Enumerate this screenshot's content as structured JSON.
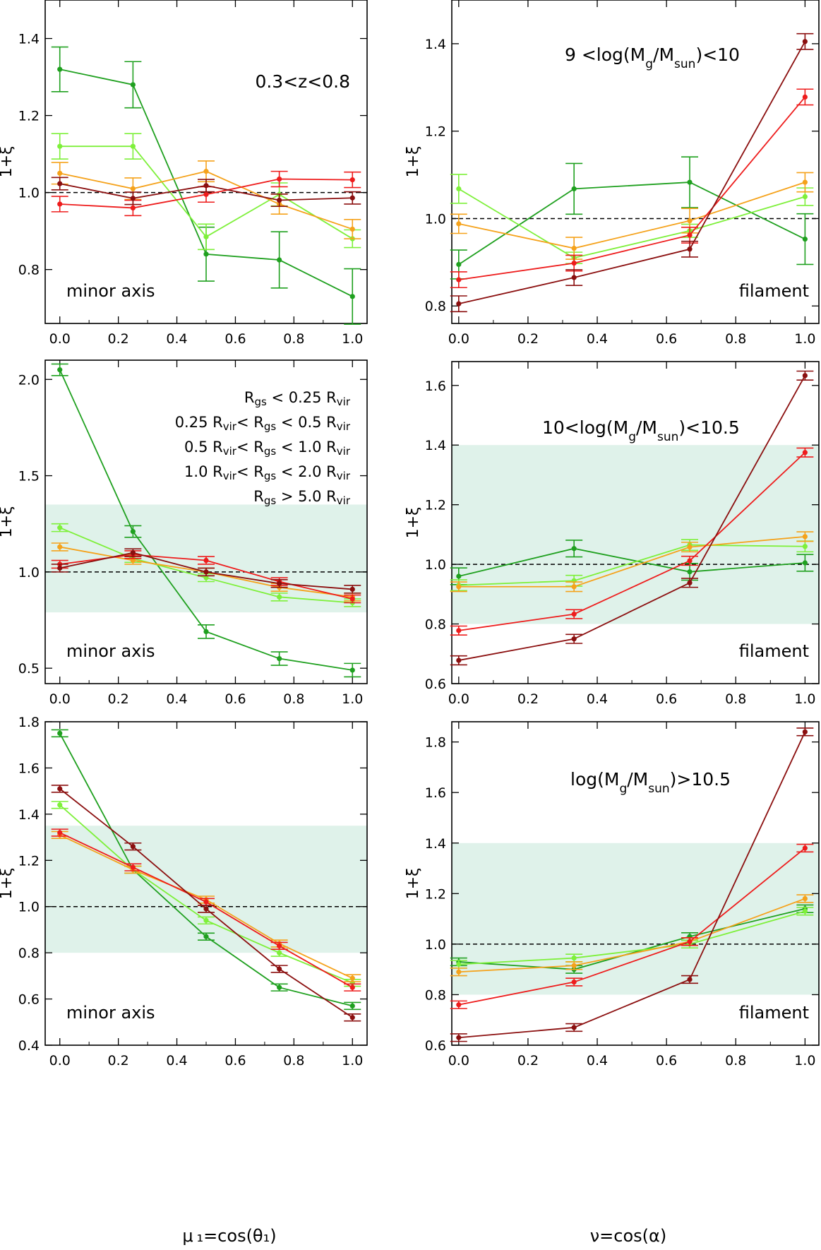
{
  "colors": {
    "s1": "#1fa01f",
    "s2": "#7ef03a",
    "s3": "#f5a21b",
    "s4": "#ee1c1c",
    "s5": "#8b0f0f",
    "band": "#dff2ea"
  },
  "legend": [
    {
      "label": "R",
      "sub": "gs",
      "rest": " < 0.25 R",
      "sub2": "vir",
      "tail": ""
    },
    {
      "label": "0.25 R",
      "sub": "vir",
      "rest": "< R",
      "sub2": "gs",
      "tail": " < 0.5 R",
      "sub3": "vir"
    },
    {
      "label": "0.5 R",
      "sub": "vir",
      "rest": "< R",
      "sub2": "gs",
      "tail": " < 1.0 R",
      "sub3": "vir"
    },
    {
      "label": "1.0 R",
      "sub": "vir",
      "rest": "< R",
      "sub2": "gs",
      "tail": " < 2.0 R",
      "sub3": "vir"
    },
    {
      "label": "R",
      "sub": "gs",
      "rest": "  > 5.0 R",
      "sub2": "vir",
      "tail": ""
    }
  ],
  "x_axis_titles": {
    "left": "μ ₁=cos(θ₁)",
    "right": "ν=cos(α)"
  },
  "chart_data": [
    {
      "type": "line",
      "panel": "top-left",
      "ylabel": "1+ξ",
      "xlim": [
        -0.05,
        1.05
      ],
      "ylim": [
        0.66,
        1.5
      ],
      "xticks": [
        "0.0",
        "0.2",
        "0.4",
        "0.6",
        "0.8",
        "1.0"
      ],
      "yticks": [
        "0.8",
        "1.0",
        "1.2",
        "1.4"
      ],
      "corner_text": "minor axis",
      "title_text": "0.3<z<0.8",
      "band": null,
      "x": [
        0,
        0.25,
        0.5,
        0.75,
        1.0
      ],
      "series": [
        {
          "name": "Rgs < 0.25 Rvir",
          "values": [
            1.32,
            1.28,
            0.84,
            0.825,
            0.73
          ],
          "err": [
            0.058,
            0.06,
            0.07,
            0.073,
            0.072
          ]
        },
        {
          "name": "0.25 Rvir < Rgs < 0.5 Rvir",
          "values": [
            1.12,
            1.12,
            0.885,
            0.995,
            0.88
          ],
          "err": [
            0.033,
            0.033,
            0.033,
            0.03,
            0.023
          ]
        },
        {
          "name": "0.5 Rvir < Rgs < 1.0 Rvir",
          "values": [
            1.05,
            1.01,
            1.055,
            0.97,
            0.905
          ],
          "err": [
            0.028,
            0.028,
            0.027,
            0.026,
            0.025
          ]
        },
        {
          "name": "1.0 Rvir < Rgs < 2.0 Rvir",
          "values": [
            0.97,
            0.96,
            0.995,
            1.035,
            1.033
          ],
          "err": [
            0.02,
            0.02,
            0.02,
            0.02,
            0.02
          ]
        },
        {
          "name": "Rgs > 5.0 Rvir",
          "values": [
            1.023,
            0.985,
            1.018,
            0.98,
            0.986
          ],
          "err": [
            0.016,
            0.016,
            0.016,
            0.016,
            0.016
          ]
        }
      ]
    },
    {
      "type": "line",
      "panel": "top-right",
      "ylabel": "1+ξ",
      "xlim": [
        -0.02,
        1.04
      ],
      "ylim": [
        0.76,
        1.5
      ],
      "xticks": [
        "0.0",
        "0.2",
        "0.4",
        "0.6",
        "0.8",
        "1.0"
      ],
      "yticks": [
        "0.8",
        "1.0",
        "1.2",
        "1.4"
      ],
      "corner_text": "filament",
      "title_text": "9 <log(M_g/M_sun)<10",
      "band": null,
      "x": [
        0,
        0.333,
        0.667,
        1.0
      ],
      "series": [
        {
          "name": "Rgs < 0.25 Rvir",
          "values": [
            0.895,
            1.068,
            1.083,
            0.953
          ],
          "err": [
            0.033,
            0.058,
            0.058,
            0.058
          ]
        },
        {
          "name": "0.25 Rvir < Rgs < 0.5 Rvir",
          "values": [
            1.068,
            0.91,
            0.972,
            1.05
          ],
          "err": [
            0.033,
            0.013,
            0.015,
            0.02
          ]
        },
        {
          "name": "0.5 Rvir < Rgs < 1.0 Rvir",
          "values": [
            0.988,
            0.932,
            0.995,
            1.083
          ],
          "err": [
            0.022,
            0.025,
            0.028,
            0.022
          ]
        },
        {
          "name": "1.0 Rvir < Rgs < 2.0 Rvir",
          "values": [
            0.86,
            0.898,
            0.962,
            1.278
          ],
          "err": [
            0.018,
            0.018,
            0.018,
            0.018
          ]
        },
        {
          "name": "Rgs > 5.0 Rvir",
          "values": [
            0.805,
            0.865,
            0.93,
            1.405
          ],
          "err": [
            0.018,
            0.018,
            0.018,
            0.018
          ]
        }
      ]
    },
    {
      "type": "line",
      "panel": "middle-left",
      "ylabel": "1+ξ",
      "xlim": [
        -0.05,
        1.05
      ],
      "ylim": [
        0.42,
        2.1
      ],
      "xticks": [
        "0.0",
        "0.2",
        "0.4",
        "0.6",
        "0.8",
        "1.0"
      ],
      "yticks": [
        "0.5",
        "1.0",
        "1.5",
        "2.0"
      ],
      "corner_text": "minor axis",
      "title_text": "",
      "band": [
        0.79,
        1.35
      ],
      "x": [
        0,
        0.25,
        0.5,
        0.75,
        1.0
      ],
      "series": [
        {
          "name": "Rgs < 0.25 Rvir",
          "values": [
            2.05,
            1.21,
            0.69,
            0.55,
            0.49
          ],
          "err": [
            0.03,
            0.03,
            0.035,
            0.035,
            0.035
          ]
        },
        {
          "name": "0.25 Rvir < Rgs < 0.5 Rvir",
          "values": [
            1.23,
            1.07,
            0.97,
            0.87,
            0.84
          ],
          "err": [
            0.02,
            0.02,
            0.02,
            0.02,
            0.02
          ]
        },
        {
          "name": "0.5 Rvir < Rgs < 1.0 Rvir",
          "values": [
            1.13,
            1.06,
            1.0,
            0.92,
            0.87
          ],
          "err": [
            0.02,
            0.02,
            0.02,
            0.02,
            0.02
          ]
        },
        {
          "name": "1.0 Rvir < Rgs < 2.0 Rvir",
          "values": [
            1.04,
            1.09,
            1.06,
            0.95,
            0.86
          ],
          "err": [
            0.02,
            0.02,
            0.02,
            0.02,
            0.02
          ]
        },
        {
          "name": "Rgs > 5.0 Rvir",
          "values": [
            1.02,
            1.1,
            1.0,
            0.94,
            0.91
          ],
          "err": [
            0.02,
            0.02,
            0.02,
            0.02,
            0.02
          ]
        }
      ]
    },
    {
      "type": "line",
      "panel": "middle-right",
      "ylabel": "1+ξ",
      "xlim": [
        -0.02,
        1.04
      ],
      "ylim": [
        0.6,
        1.68
      ],
      "xticks": [
        "0.0",
        "0.2",
        "0.4",
        "0.6",
        "0.8",
        "1.0"
      ],
      "yticks": [
        "0.6",
        "0.8",
        "1.0",
        "1.2",
        "1.4",
        "1.6"
      ],
      "corner_text": "filament",
      "title_text": "10<log(M_g/M_sun)<10.5",
      "band": [
        0.8,
        1.4
      ],
      "x": [
        0,
        0.333,
        0.667,
        1.0
      ],
      "series": [
        {
          "name": "Rgs < 0.25 Rvir",
          "values": [
            0.96,
            1.053,
            0.975,
            1.005
          ],
          "err": [
            0.028,
            0.028,
            0.028,
            0.028
          ]
        },
        {
          "name": "0.25 Rvir < Rgs < 0.5 Rvir",
          "values": [
            0.93,
            0.945,
            1.065,
            1.06
          ],
          "err": [
            0.018,
            0.018,
            0.018,
            0.018
          ]
        },
        {
          "name": "0.5 Rvir < Rgs < 1.0 Rvir",
          "values": [
            0.925,
            0.925,
            1.058,
            1.093
          ],
          "err": [
            0.016,
            0.016,
            0.016,
            0.016
          ]
        },
        {
          "name": "1.0 Rvir < Rgs < 2.0 Rvir",
          "values": [
            0.778,
            0.833,
            1.012,
            1.375
          ],
          "err": [
            0.015,
            0.015,
            0.015,
            0.015
          ]
        },
        {
          "name": "Rgs > 5.0 Rvir",
          "values": [
            0.678,
            0.75,
            0.938,
            1.633
          ],
          "err": [
            0.015,
            0.015,
            0.015,
            0.015
          ]
        }
      ]
    },
    {
      "type": "line",
      "panel": "bottom-left",
      "ylabel": "1+ξ",
      "xlim": [
        -0.05,
        1.05
      ],
      "ylim": [
        0.4,
        1.8
      ],
      "xticks": [
        "0.0",
        "0.2",
        "0.4",
        "0.6",
        "0.8",
        "1.0"
      ],
      "yticks": [
        "0.4",
        "0.6",
        "0.8",
        "1.0",
        "1.2",
        "1.4",
        "1.6",
        "1.8"
      ],
      "corner_text": "minor axis",
      "title_text": "",
      "band": [
        0.8,
        1.35
      ],
      "x": [
        0,
        0.25,
        0.5,
        0.75,
        1.0
      ],
      "series": [
        {
          "name": "Rgs < 0.25 Rvir",
          "values": [
            1.75,
            1.16,
            0.87,
            0.65,
            0.57
          ],
          "err": [
            0.015,
            0.015,
            0.015,
            0.015,
            0.015
          ]
        },
        {
          "name": "0.25 Rvir < Rgs < 0.5 Rvir",
          "values": [
            1.44,
            1.16,
            0.94,
            0.8,
            0.67
          ],
          "err": [
            0.015,
            0.015,
            0.015,
            0.015,
            0.015
          ]
        },
        {
          "name": "0.5 Rvir < Rgs < 1.0 Rvir",
          "values": [
            1.31,
            1.16,
            1.03,
            0.84,
            0.69
          ],
          "err": [
            0.015,
            0.015,
            0.015,
            0.015,
            0.015
          ]
        },
        {
          "name": "1.0 Rvir < Rgs < 2.0 Rvir",
          "values": [
            1.32,
            1.17,
            1.02,
            0.83,
            0.65
          ],
          "err": [
            0.015,
            0.015,
            0.015,
            0.015,
            0.015
          ]
        },
        {
          "name": "Rgs > 5.0 Rvir",
          "values": [
            1.51,
            1.26,
            0.99,
            0.73,
            0.52
          ],
          "err": [
            0.015,
            0.015,
            0.015,
            0.015,
            0.015
          ]
        }
      ]
    },
    {
      "type": "line",
      "panel": "bottom-right",
      "ylabel": "1+ξ",
      "xlim": [
        -0.02,
        1.04
      ],
      "ylim": [
        0.6,
        1.88
      ],
      "xticks": [
        "0.0",
        "0.2",
        "0.4",
        "0.6",
        "0.8",
        "1.0"
      ],
      "yticks": [
        "0.6",
        "0.8",
        "1.0",
        "1.2",
        "1.4",
        "1.6",
        "1.8"
      ],
      "corner_text": "filament",
      "title_text": "log(M_g/M_sun)>10.5",
      "band": [
        0.8,
        1.4
      ],
      "x": [
        0,
        0.333,
        0.667,
        1.0
      ],
      "series": [
        {
          "name": "Rgs < 0.25 Rvir",
          "values": [
            0.93,
            0.9,
            1.03,
            1.14
          ],
          "err": [
            0.015,
            0.015,
            0.015,
            0.015
          ]
        },
        {
          "name": "0.25 Rvir < Rgs < 0.5 Rvir",
          "values": [
            0.92,
            0.945,
            1.0,
            1.13
          ],
          "err": [
            0.015,
            0.015,
            0.015,
            0.015
          ]
        },
        {
          "name": "0.5 Rvir < Rgs < 1.0 Rvir",
          "values": [
            0.89,
            0.915,
            1.01,
            1.18
          ],
          "err": [
            0.015,
            0.015,
            0.015,
            0.015
          ]
        },
        {
          "name": "1.0 Rvir < Rgs < 2.0 Rvir",
          "values": [
            0.76,
            0.85,
            1.01,
            1.38
          ],
          "err": [
            0.015,
            0.015,
            0.015,
            0.015
          ]
        },
        {
          "name": "Rgs > 5.0 Rvir",
          "values": [
            0.63,
            0.67,
            0.86,
            1.84
          ],
          "err": [
            0.015,
            0.015,
            0.015,
            0.015
          ]
        }
      ]
    }
  ]
}
